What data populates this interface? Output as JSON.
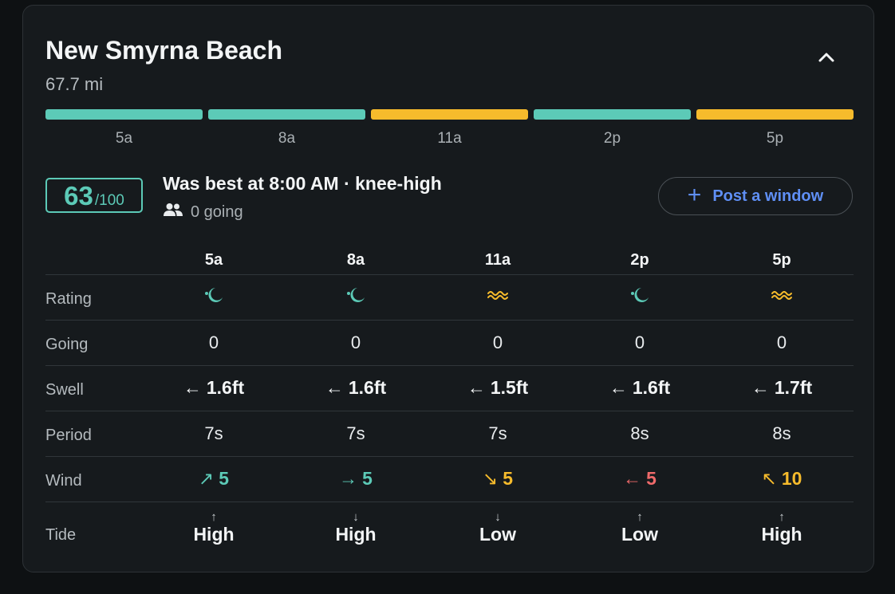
{
  "spot": {
    "name": "New Smyrna Beach",
    "distance": "67.7 mi"
  },
  "colors": {
    "good": "#5ccab7",
    "fair": "#f6bb2c",
    "poor": "#ef6a6a",
    "accent": "#5f8ff5"
  },
  "timeline": [
    {
      "label": "5a",
      "condition": "good"
    },
    {
      "label": "8a",
      "condition": "good"
    },
    {
      "label": "11a",
      "condition": "fair"
    },
    {
      "label": "2p",
      "condition": "good"
    },
    {
      "label": "5p",
      "condition": "fair"
    }
  ],
  "score": {
    "value": "63",
    "max": "/100"
  },
  "best": {
    "text": "Was best at 8:00 AM · knee-high",
    "going": "0 going"
  },
  "post_button": {
    "label": "Post a window"
  },
  "table": {
    "times": [
      "5a",
      "8a",
      "11a",
      "2p",
      "5p"
    ],
    "row_labels": {
      "rating": "Rating",
      "going": "Going",
      "swell": "Swell",
      "period": "Period",
      "wind": "Wind",
      "tide": "Tide"
    },
    "rating": [
      {
        "icon": "moon-icon",
        "condition": "good"
      },
      {
        "icon": "moon-icon",
        "condition": "good"
      },
      {
        "icon": "wave-icon",
        "condition": "fair"
      },
      {
        "icon": "moon-icon",
        "condition": "good"
      },
      {
        "icon": "wave-icon",
        "condition": "fair"
      }
    ],
    "going": [
      "0",
      "0",
      "0",
      "0",
      "0"
    ],
    "swell": [
      {
        "arrow": "←",
        "value": "1.6ft"
      },
      {
        "arrow": "←",
        "value": "1.6ft"
      },
      {
        "arrow": "←",
        "value": "1.5ft"
      },
      {
        "arrow": "←",
        "value": "1.6ft"
      },
      {
        "arrow": "←",
        "value": "1.7ft"
      }
    ],
    "period": [
      "7s",
      "7s",
      "7s",
      "8s",
      "8s"
    ],
    "wind": [
      {
        "arrow": "↗",
        "value": "5",
        "condition": "good"
      },
      {
        "arrow": "→",
        "value": "5",
        "condition": "good"
      },
      {
        "arrow": "↘",
        "value": "5",
        "condition": "fair"
      },
      {
        "arrow": "←",
        "value": "5",
        "condition": "poor"
      },
      {
        "arrow": "↖",
        "value": "10",
        "condition": "fair"
      }
    ],
    "tide": [
      {
        "arrow": "↑",
        "value": "High"
      },
      {
        "arrow": "↓",
        "value": "High"
      },
      {
        "arrow": "↓",
        "value": "Low"
      },
      {
        "arrow": "↑",
        "value": "Low"
      },
      {
        "arrow": "↑",
        "value": "High"
      }
    ]
  }
}
